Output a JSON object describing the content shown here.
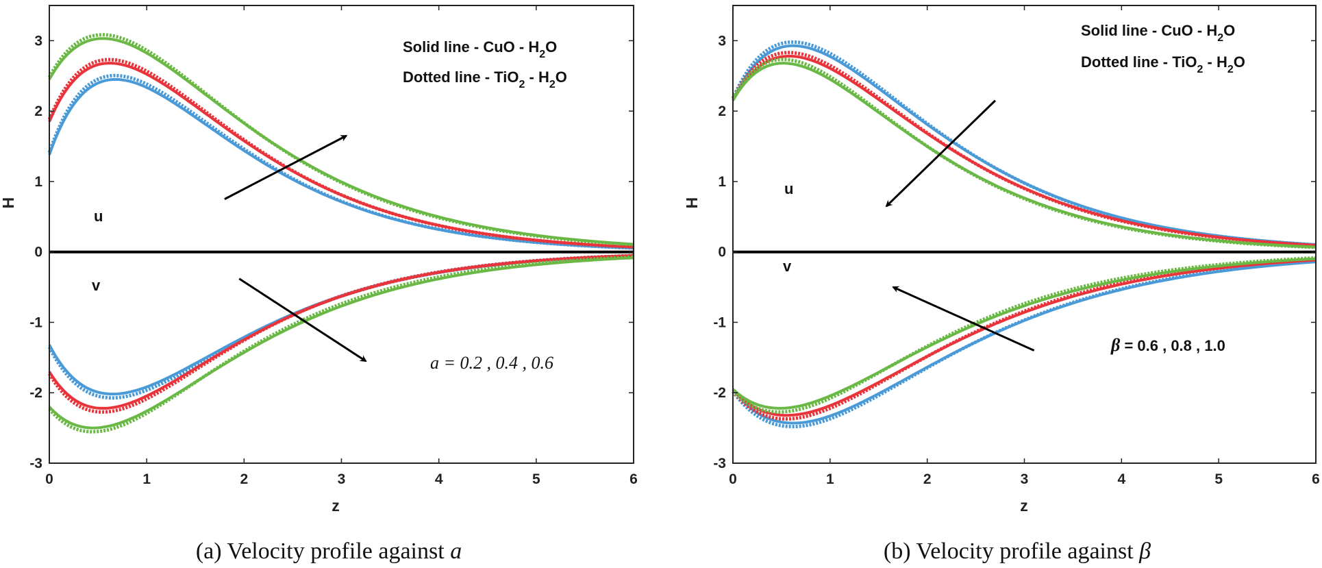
{
  "chart_data": [
    {
      "type": "line",
      "panel": "a",
      "caption_prefix": "(a)  Velocity profile against ",
      "caption_symbol": "a",
      "xlabel": "z",
      "ylabel": "H",
      "xlim": [
        0,
        6
      ],
      "ylim": [
        -3,
        3.5
      ],
      "xticks": [
        "0",
        "1",
        "2",
        "3",
        "4",
        "5",
        "6"
      ],
      "yticks": [
        "-3",
        "-2",
        "-1",
        "0",
        "1",
        "2",
        "3"
      ],
      "legend_solid": {
        "prefix": "Solid line - CuO - H",
        "sub": "2",
        "suffix": "O"
      },
      "legend_dotted": {
        "prefix": "Dotted line - TiO",
        "sub1": "2",
        "middle": " - H",
        "sub2": "2",
        "suffix": "O"
      },
      "labels": {
        "u": "u",
        "v": "v"
      },
      "parameter_label": "a = 0.2 , 0.4 , 0.6",
      "colors": {
        "blue": "#4a9ad8",
        "red": "#e8343a",
        "green": "#6ab845",
        "black": "#000000"
      },
      "series": [
        {
          "name": "u, a=0.2",
          "component": "u",
          "color": "blue",
          "peak": 2.45,
          "start": 1.38,
          "peak_z": 0.68,
          "dotted_offset": 0.03
        },
        {
          "name": "u, a=0.4",
          "component": "u",
          "color": "red",
          "peak": 2.68,
          "start": 1.85,
          "peak_z": 0.62,
          "dotted_offset": 0.03
        },
        {
          "name": "u, a=0.6",
          "component": "u",
          "color": "green",
          "peak": 3.03,
          "start": 2.45,
          "peak_z": 0.55,
          "dotted_offset": 0.03
        },
        {
          "name": "v, a=0.2",
          "component": "v",
          "color": "blue",
          "peak": -2.02,
          "start": -1.32,
          "peak_z": 0.65,
          "dotted_offset": 0.03
        },
        {
          "name": "v, a=0.4",
          "component": "v",
          "color": "red",
          "peak": -2.22,
          "start": -1.7,
          "peak_z": 0.55,
          "dotted_offset": 0.03
        },
        {
          "name": "v, a=0.6",
          "component": "v",
          "color": "green",
          "peak": -2.5,
          "start": -2.2,
          "peak_z": 0.45,
          "dotted_offset": 0.03
        }
      ],
      "arrows": [
        {
          "from": [
            1.8,
            0.75
          ],
          "to": [
            3.05,
            1.65
          ]
        },
        {
          "from": [
            1.95,
            -0.38
          ],
          "to": [
            3.25,
            -1.55
          ]
        }
      ]
    },
    {
      "type": "line",
      "panel": "b",
      "caption_prefix": "(b)  Velocity profile against ",
      "caption_symbol": "β",
      "xlabel": "z",
      "ylabel": "H",
      "xlim": [
        0,
        6
      ],
      "ylim": [
        -3,
        3.5
      ],
      "xticks": [
        "0",
        "1",
        "2",
        "3",
        "4",
        "5",
        "6"
      ],
      "yticks": [
        "-3",
        "-2",
        "-1",
        "0",
        "1",
        "2",
        "3"
      ],
      "legend_solid": {
        "prefix": "Solid line - CuO - H",
        "sub": "2",
        "suffix": "O"
      },
      "legend_dotted": {
        "prefix": "Dotted line - TiO",
        "sub1": "2",
        "middle": " - H",
        "sub2": "2",
        "suffix": "O"
      },
      "labels": {
        "u": "u",
        "v": "v"
      },
      "parameter_symbol": "β",
      "parameter_values": " = 0.6 , 0.8 , 1.0",
      "colors": {
        "blue": "#4a9ad8",
        "red": "#e8343a",
        "green": "#6ab845",
        "black": "#000000"
      },
      "series": [
        {
          "name": "u, β=0.6",
          "component": "u",
          "color": "blue",
          "peak": 2.93,
          "start": 2.15,
          "peak_z": 0.62,
          "dotted_offset": 0.03
        },
        {
          "name": "u, β=0.8",
          "component": "u",
          "color": "red",
          "peak": 2.78,
          "start": 2.15,
          "peak_z": 0.58,
          "dotted_offset": 0.03
        },
        {
          "name": "u, β=1.0",
          "component": "u",
          "color": "green",
          "peak": 2.68,
          "start": 2.15,
          "peak_z": 0.52,
          "dotted_offset": 0.03
        },
        {
          "name": "v, β=0.6",
          "component": "v",
          "color": "blue",
          "peak": -2.43,
          "start": -1.95,
          "peak_z": 0.62,
          "dotted_offset": 0.03
        },
        {
          "name": "v, β=0.8",
          "component": "v",
          "color": "red",
          "peak": -2.32,
          "start": -1.95,
          "peak_z": 0.55,
          "dotted_offset": 0.03
        },
        {
          "name": "v, β=1.0",
          "component": "v",
          "color": "green",
          "peak": -2.22,
          "start": -1.95,
          "peak_z": 0.48,
          "dotted_offset": 0.03
        }
      ],
      "arrows": [
        {
          "from": [
            2.7,
            2.15
          ],
          "to": [
            1.58,
            0.65
          ]
        },
        {
          "from": [
            3.1,
            -1.4
          ],
          "to": [
            1.65,
            -0.5
          ]
        }
      ]
    }
  ]
}
